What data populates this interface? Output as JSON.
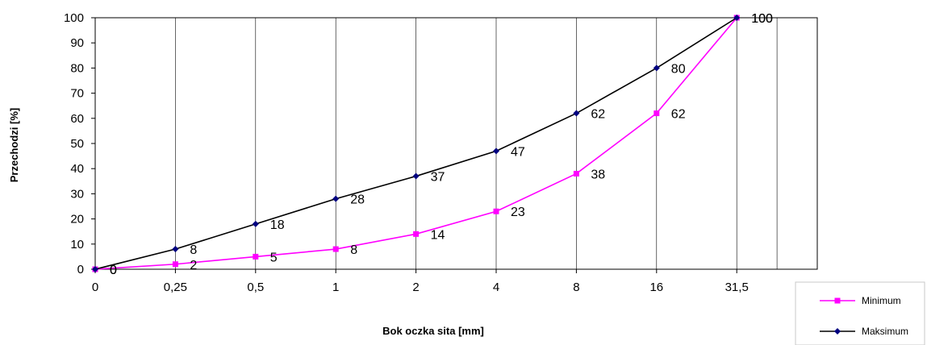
{
  "chart_data": {
    "type": "line",
    "xlabel": "Bok oczka sita [mm]",
    "ylabel": "Przechodzi [%]",
    "categories": [
      "0",
      "0,25",
      "0,5",
      "1",
      "2",
      "4",
      "8",
      "16",
      "31,5"
    ],
    "ylim": [
      0,
      100
    ],
    "yticks": [
      0,
      10,
      20,
      30,
      40,
      50,
      60,
      70,
      80,
      90,
      100
    ],
    "grid": {
      "vertical": true,
      "horizontal": false
    },
    "legend_position": "bottom-right",
    "series": [
      {
        "name": "Maksimum",
        "values": [
          0,
          8,
          18,
          28,
          37,
          47,
          62,
          80,
          100
        ],
        "color": "#000000",
        "marker_color": "#000080",
        "marker": "diamond"
      },
      {
        "name": "Minimum",
        "values": [
          0,
          2,
          5,
          8,
          14,
          23,
          38,
          62,
          100
        ],
        "color": "#ff00ff",
        "marker_color": "#ff00ff",
        "marker": "square"
      }
    ]
  }
}
